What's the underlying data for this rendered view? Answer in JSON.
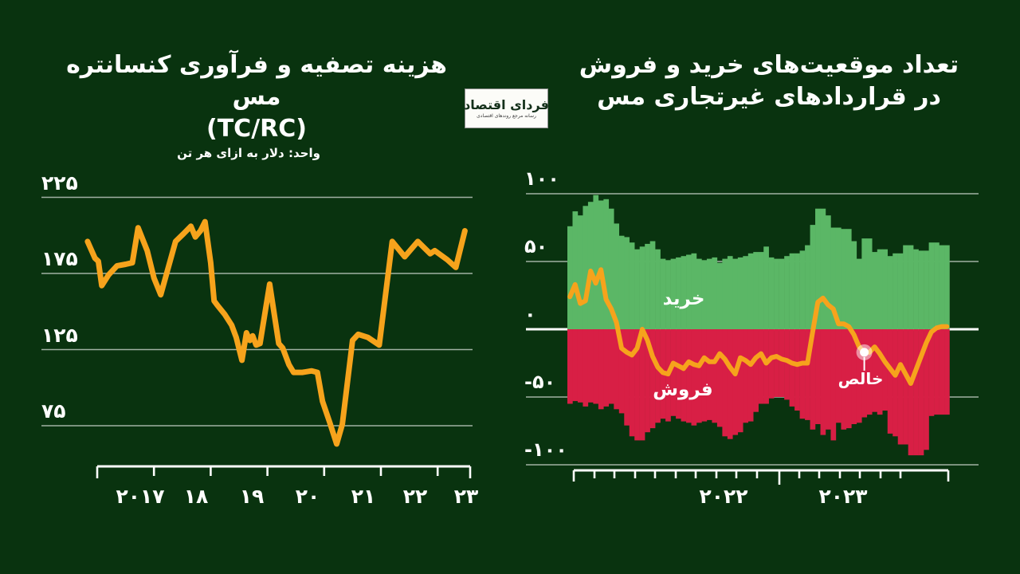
{
  "page": {
    "background": "#09330f",
    "accent_orange": "#f6a31c",
    "green": "#5bb766",
    "red": "#d81f45",
    "grid_color": "rgba(255,255,255,0.62)",
    "axis_color": "#ffffff"
  },
  "logo": {
    "title": "فردای اقتصاد",
    "tagline": "رسانه مرجع روندهای اقتصادی"
  },
  "chart_data": [
    {
      "type": "line",
      "title_line1": "هزینه تصفیه و فرآوری کنسانتره مس",
      "title_line2": "(TC/RC)",
      "subtitle": "واحد: دلار به ازای هر تن",
      "xlim": [
        2016.8,
        2023.6
      ],
      "ylim": [
        50,
        235
      ],
      "grid": "horizontal",
      "y_ticks": {
        "labels": [
          "۲۲۵",
          "۱۷۵",
          "۱۲۵",
          "۷۵"
        ],
        "values": [
          225,
          175,
          125,
          75
        ]
      },
      "x_ticks": {
        "labels": [
          "۲۰۱۷",
          "۱۸",
          "۱۹",
          "۲۰",
          "۲۱",
          "۲۲",
          "۲۳"
        ],
        "values": [
          2017,
          2018,
          2019,
          2020,
          2021,
          2022,
          2023
        ]
      },
      "series": [
        {
          "name": "TC/RC",
          "color": "#f6a31c",
          "points": [
            [
              2016.83,
              196
            ],
            [
              2016.96,
              185
            ],
            [
              2017.02,
              183
            ],
            [
              2017.08,
              167
            ],
            [
              2017.2,
              174
            ],
            [
              2017.35,
              180
            ],
            [
              2017.5,
              181
            ],
            [
              2017.62,
              182
            ],
            [
              2017.72,
              205
            ],
            [
              2017.88,
              190
            ],
            [
              2018.0,
              172
            ],
            [
              2018.12,
              161
            ],
            [
              2018.38,
              196
            ],
            [
              2018.52,
              201
            ],
            [
              2018.65,
              206
            ],
            [
              2018.73,
              199
            ],
            [
              2018.82,
              203
            ],
            [
              2018.9,
              209
            ],
            [
              2019.0,
              182
            ],
            [
              2019.06,
              157
            ],
            [
              2019.12,
              154
            ],
            [
              2019.25,
              148
            ],
            [
              2019.37,
              141
            ],
            [
              2019.45,
              133
            ],
            [
              2019.55,
              118
            ],
            [
              2019.63,
              136
            ],
            [
              2019.69,
              131
            ],
            [
              2019.74,
              134
            ],
            [
              2019.8,
              128
            ],
            [
              2019.87,
              129
            ],
            [
              2020.04,
              168
            ],
            [
              2020.2,
              129
            ],
            [
              2020.27,
              126
            ],
            [
              2020.38,
              115
            ],
            [
              2020.46,
              110
            ],
            [
              2020.62,
              110
            ],
            [
              2020.78,
              111
            ],
            [
              2020.88,
              110
            ],
            [
              2020.97,
              91
            ],
            [
              2021.1,
              77
            ],
            [
              2021.22,
              63
            ],
            [
              2021.32,
              76
            ],
            [
              2021.5,
              131
            ],
            [
              2021.6,
              135
            ],
            [
              2021.77,
              133
            ],
            [
              2021.97,
              128
            ],
            [
              2022.2,
              196
            ],
            [
              2022.42,
              186
            ],
            [
              2022.65,
              196
            ],
            [
              2022.87,
              188
            ],
            [
              2022.95,
              190
            ],
            [
              2023.17,
              184
            ],
            [
              2023.32,
              179
            ],
            [
              2023.48,
              203
            ]
          ]
        }
      ]
    },
    {
      "type": "bar",
      "title_line1": "تعداد موقعیت‌های خرید و فروش",
      "title_line2": "در قراردادهای غیرتجاری مس",
      "weeks": 74,
      "ylim": [
        -110,
        110
      ],
      "grid": "horizontal",
      "y_ticks": {
        "labels": [
          "۱۰۰",
          "۵۰",
          "۰",
          "-۵۰",
          "-۱۰۰"
        ],
        "values": [
          100,
          50,
          0,
          -50,
          -100
        ]
      },
      "x_ticks": {
        "labels": [
          "۲۰۲۲",
          "۲۰۲۳"
        ]
      },
      "net_marker_week": 57,
      "series": [
        {
          "name": "خرید",
          "type": "bar",
          "color": "#5bb766",
          "values": [
            76,
            87,
            84,
            91,
            94,
            99,
            95,
            96,
            89,
            78,
            69,
            68,
            64,
            59,
            61,
            63,
            65,
            59,
            52,
            51,
            52,
            53,
            54,
            55,
            56,
            52,
            51,
            52,
            53,
            49,
            52,
            54,
            52,
            53,
            54,
            56,
            57,
            57,
            61,
            53,
            52,
            52,
            54,
            56,
            56,
            58,
            62,
            77,
            89,
            89,
            84,
            75,
            75,
            74,
            74,
            65,
            52,
            67,
            67,
            57,
            59,
            59,
            54,
            56,
            56,
            62,
            62,
            59,
            58,
            58,
            64,
            64,
            62,
            62
          ]
        },
        {
          "name": "فروش",
          "type": "bar",
          "color": "#d81f45",
          "values": [
            -55,
            -53,
            -54,
            -57,
            -54,
            -55,
            -59,
            -57,
            -55,
            -59,
            -62,
            -71,
            -79,
            -82,
            -82,
            -76,
            -73,
            -69,
            -66,
            -68,
            -64,
            -66,
            -68,
            -69,
            -71,
            -69,
            -68,
            -67,
            -69,
            -72,
            -79,
            -81,
            -78,
            -76,
            -69,
            -68,
            -61,
            -55,
            -55,
            -51,
            -50,
            -50,
            -52,
            -57,
            -60,
            -66,
            -67,
            -74,
            -70,
            -78,
            -74,
            -82,
            -69,
            -74,
            -73,
            -70,
            -69,
            -65,
            -63,
            -61,
            -63,
            -60,
            -77,
            -79,
            -85,
            -85,
            -93,
            -93,
            -93,
            -89,
            -64,
            -63,
            -63,
            -63
          ]
        },
        {
          "name": "خالص",
          "type": "line",
          "color": "#f6a31c",
          "values": [
            24,
            33,
            19,
            21,
            43,
            34,
            44,
            22,
            15,
            5,
            -14,
            -17,
            -19,
            -14,
            0,
            -8,
            -20,
            -28,
            -32,
            -33,
            -25,
            -27,
            -29,
            -24,
            -26,
            -27,
            -21,
            -24,
            -24,
            -18,
            -22,
            -28,
            -33,
            -21,
            -23,
            -26,
            -21,
            -18,
            -25,
            -21,
            -20,
            -22,
            -23,
            -25,
            -26,
            -25,
            -25,
            -2,
            20,
            23,
            18,
            15,
            4,
            4,
            2,
            -4,
            -13,
            -17,
            -17,
            -13,
            -18,
            -24,
            -29,
            -34,
            -26,
            -33,
            -40,
            -30,
            -20,
            -10,
            -2,
            1,
            2,
            2
          ]
        }
      ]
    }
  ]
}
